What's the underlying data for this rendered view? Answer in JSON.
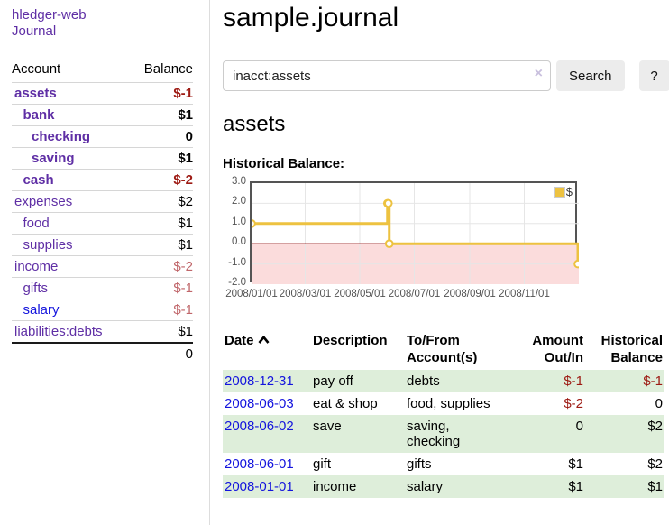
{
  "colors": {
    "purple_link": "#5f2fa5",
    "blue_link": "#1414dd",
    "negative_strong": "#9d1a13",
    "negative_muted": "#c0666a",
    "row_green": "#deeeda",
    "chart_gold": "#edc240",
    "chart_negative_fill": "#fbdcdc",
    "chart_zero_line": "#8b0000",
    "chart_border": "#545454"
  },
  "sidebar": {
    "brand": "hledger-web",
    "nav_journal": "Journal",
    "header": {
      "account": "Account",
      "balance": "Balance"
    },
    "accounts": [
      {
        "name": "assets",
        "indent": 0,
        "balance": "$-1",
        "bold": true,
        "neg": "strong"
      },
      {
        "name": "bank",
        "indent": 1,
        "balance": "$1",
        "bold": true,
        "neg": null
      },
      {
        "name": "checking",
        "indent": 2,
        "balance": "0",
        "bold": true,
        "neg": null
      },
      {
        "name": "saving",
        "indent": 2,
        "balance": "$1",
        "bold": true,
        "neg": null
      },
      {
        "name": "cash",
        "indent": 1,
        "balance": "$-2",
        "bold": true,
        "neg": "strong"
      },
      {
        "name": "expenses",
        "indent": 0,
        "balance": "$2",
        "bold": false,
        "neg": null
      },
      {
        "name": "food",
        "indent": 1,
        "balance": "$1",
        "bold": false,
        "neg": null
      },
      {
        "name": "supplies",
        "indent": 1,
        "balance": "$1",
        "bold": false,
        "neg": null
      },
      {
        "name": "income",
        "indent": 0,
        "balance": "$-2",
        "bold": false,
        "neg": "muted"
      },
      {
        "name": "gifts",
        "indent": 1,
        "balance": "$-1",
        "bold": false,
        "neg": "muted"
      },
      {
        "name": "salary",
        "indent": 1,
        "balance": "$-1",
        "bold": false,
        "neg": "muted",
        "blue": true
      },
      {
        "name": "liabilities:debts",
        "indent": 0,
        "balance": "$1",
        "bold": false,
        "neg": null
      }
    ],
    "total": "0"
  },
  "header": {
    "title": "sample.journal"
  },
  "search": {
    "value": "inacct:assets",
    "clear_icon": "×",
    "button_label": "Search",
    "help_label": "?"
  },
  "account_page": {
    "title": "assets",
    "chart_label": "Historical Balance:"
  },
  "chart_data": {
    "type": "line",
    "style": "step-with-markers",
    "title": "Historical Balance:",
    "x_domain": [
      "2008-01-01",
      "2009-01-01"
    ],
    "ylim": [
      -2,
      3
    ],
    "yticks": [
      "3.0",
      "2.0",
      "1.0",
      "0.0",
      "-1.0",
      "-2.0"
    ],
    "xticks": [
      {
        "label": "2008/01/01",
        "date": "2008-01-01"
      },
      {
        "label": "2008/03/01",
        "date": "2008-03-01"
      },
      {
        "label": "2008/05/01",
        "date": "2008-05-01"
      },
      {
        "label": "2008/07/01",
        "date": "2008-07-01"
      },
      {
        "label": "2008/09/01",
        "date": "2008-09-01"
      },
      {
        "label": "2008/11/01",
        "date": "2008-11-01"
      }
    ],
    "series": [
      {
        "name": "$",
        "color": "#edc240",
        "points": [
          {
            "date": "2008-01-01",
            "value": 1
          },
          {
            "date": "2008-06-01",
            "value": 2
          },
          {
            "date": "2008-06-02",
            "value": 2
          },
          {
            "date": "2008-06-03",
            "value": 0
          },
          {
            "date": "2008-12-31",
            "value": -1
          }
        ]
      }
    ],
    "negative_fill": "#fbdcdc",
    "zero_line": "#8b0000",
    "grid": true,
    "legend": {
      "label": "$",
      "position": "top-right"
    }
  },
  "register": {
    "columns": [
      {
        "label": "Date",
        "sort": "asc"
      },
      {
        "label": "Description"
      },
      {
        "label": "To/From Account(s)"
      },
      {
        "label": "Amount Out/In"
      },
      {
        "label": "Historical Balance"
      }
    ],
    "rows": [
      {
        "date": "2008-12-31",
        "description": "pay off",
        "accounts": "debts",
        "amount": "$-1",
        "balance": "$-1"
      },
      {
        "date": "2008-06-03",
        "description": "eat & shop",
        "accounts": "food, supplies",
        "amount": "$-2",
        "balance": "0"
      },
      {
        "date": "2008-06-02",
        "description": "save",
        "accounts": "saving, checking",
        "amount": "0",
        "balance": "$2"
      },
      {
        "date": "2008-06-01",
        "description": "gift",
        "accounts": "gifts",
        "amount": "$1",
        "balance": "$2"
      },
      {
        "date": "2008-01-01",
        "description": "income",
        "accounts": "salary",
        "amount": "$1",
        "balance": "$1"
      }
    ]
  }
}
